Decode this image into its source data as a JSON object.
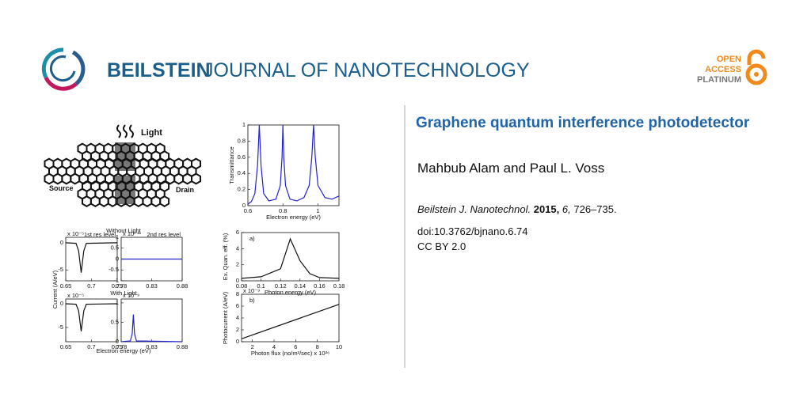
{
  "header": {
    "brand": "BEILSTEIN",
    "journal": "JOURNAL OF NANOTECHNOLOGY",
    "badge": [
      "OPEN",
      "ACCESS",
      "PLATINUM"
    ]
  },
  "article": {
    "title": "Graphene quantum interference photodetector",
    "authors": "Mahbub Alam and Paul L. Voss",
    "citation": {
      "journal": "Beilstein J. Nanotechnol.",
      "year": "2015,",
      "volume": "6,",
      "pages": "726–735."
    },
    "doi": "doi:10.3762/bjnano.6.74",
    "license": "CC BY 2.0"
  },
  "figure": {
    "schematic": {
      "light": "Light",
      "source": "Source",
      "drain": "Drain"
    },
    "current_group": {
      "without": "Without Light",
      "with": "With Light",
      "xlabel": "Electron energy (eV)",
      "ylabel": "Current (A/eV)"
    },
    "panels": [
      {
        "type": "line",
        "xlabel": "Electron energy (eV)",
        "ylabel": "Transmittance",
        "color": "#2222cc",
        "xlim": [
          0.6,
          1.12
        ],
        "ylim": [
          0,
          1
        ],
        "xticks": [
          0.6,
          0.8,
          1
        ],
        "yticks": [
          0,
          0.2,
          0.4,
          0.6,
          0.8,
          1
        ],
        "x": [
          0.6,
          0.62,
          0.64,
          0.655,
          0.665,
          0.675,
          0.69,
          0.72,
          0.76,
          0.785,
          0.795,
          0.8,
          0.805,
          0.815,
          0.84,
          0.88,
          0.92,
          0.95,
          0.965,
          0.975,
          0.985,
          1.0,
          1.04,
          1.08,
          1.12
        ],
        "values": [
          0.02,
          0.05,
          0.15,
          0.5,
          1,
          0.5,
          0.15,
          0.06,
          0.08,
          0.25,
          0.6,
          1,
          0.6,
          0.25,
          0.08,
          0.06,
          0.1,
          0.25,
          0.6,
          1,
          0.6,
          0.25,
          0.1,
          0.08,
          0.12
        ]
      },
      {
        "type": "line",
        "title": "1st res level",
        "scale": "x 10⁻⁵",
        "color": "#111111",
        "xlim": [
          0.65,
          0.75
        ],
        "ylim": [
          -7,
          1
        ],
        "xticks": [
          0.65,
          0.7,
          0.75
        ],
        "yticks": [
          0,
          -5
        ],
        "x": [
          0.65,
          0.67,
          0.675,
          0.68,
          0.685,
          0.69,
          0.75
        ],
        "values": [
          0,
          -0.1,
          -1.5,
          -5.5,
          -1.5,
          -0.1,
          0
        ]
      },
      {
        "type": "line",
        "title": "2nd res level",
        "scale": "x 10⁻¹¹",
        "color": "#2222cc",
        "xlim": [
          0.78,
          0.88
        ],
        "ylim": [
          -1,
          1
        ],
        "xticks": [
          0.78,
          0.83,
          0.88
        ],
        "yticks": [
          1,
          0.5,
          0,
          -0.5,
          -1
        ],
        "x": [
          0.78,
          0.88
        ],
        "values": [
          0,
          0
        ]
      },
      {
        "type": "line",
        "scale": "x 10⁻⁵",
        "color": "#111111",
        "xlim": [
          0.65,
          0.75
        ],
        "ylim": [
          -8,
          1
        ],
        "xticks": [
          0.65,
          0.7,
          0.75
        ],
        "yticks": [
          0,
          -5
        ],
        "x": [
          0.65,
          0.67,
          0.675,
          0.68,
          0.685,
          0.69,
          0.75
        ],
        "values": [
          0,
          -0.1,
          -1.5,
          -5.8,
          -1.5,
          -0.1,
          0
        ]
      },
      {
        "type": "line",
        "scale": "x 10⁻⁹",
        "color": "#2222cc",
        "xlim": [
          0.78,
          0.88
        ],
        "ylim": [
          0,
          1.1
        ],
        "xticks": [
          0.78,
          0.83,
          0.88
        ],
        "yticks": [
          1,
          0.5,
          0
        ],
        "x": [
          0.78,
          0.795,
          0.798,
          0.8,
          0.802,
          0.805,
          0.88
        ],
        "values": [
          0,
          0.02,
          0.2,
          0.7,
          0.2,
          0.02,
          0
        ]
      },
      {
        "type": "line",
        "tag": "a)",
        "xlabel": "Photon energy (eV)",
        "ylabel": "Ex. Quan. eff. (%)",
        "color": "#111111",
        "xlim": [
          0.08,
          0.18
        ],
        "ylim": [
          0,
          6
        ],
        "xticks": [
          0.08,
          0.1,
          0.12,
          0.14,
          0.16,
          0.18
        ],
        "yticks": [
          0,
          2,
          4,
          6
        ],
        "x": [
          0.08,
          0.1,
          0.12,
          0.13,
          0.14,
          0.15,
          0.16,
          0.18
        ],
        "values": [
          0.3,
          0.5,
          1.5,
          5.2,
          2.5,
          0.9,
          0.4,
          0.3
        ]
      },
      {
        "type": "line",
        "tag": "b)",
        "scale": "x 10⁻⁹",
        "xlabel": "Photon flux (no/m²/sec) x 10²⁶",
        "ylabel": "Photocurrent (A/eV)",
        "color": "#111111",
        "xlim": [
          1,
          10
        ],
        "ylim": [
          0,
          8
        ],
        "xticks": [
          2,
          4,
          6,
          8,
          10
        ],
        "yticks": [
          0,
          2,
          4,
          6,
          8
        ],
        "x": [
          1,
          10
        ],
        "values": [
          0.5,
          6.3
        ]
      }
    ]
  }
}
